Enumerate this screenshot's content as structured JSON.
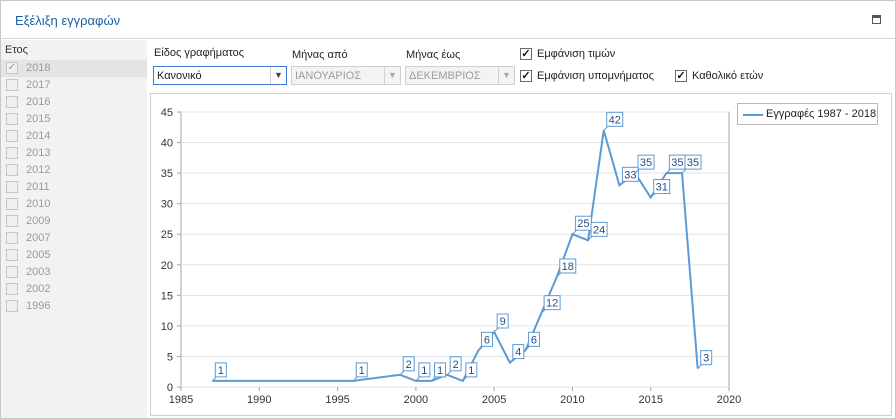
{
  "window": {
    "title": "Εξέλιξη εγγραφών"
  },
  "year_panel": {
    "header": "Ετος",
    "years": [
      {
        "label": "2018",
        "checked": true
      },
      {
        "label": "2017",
        "checked": false
      },
      {
        "label": "2016",
        "checked": false
      },
      {
        "label": "2015",
        "checked": false
      },
      {
        "label": "2014",
        "checked": false
      },
      {
        "label": "2013",
        "checked": false
      },
      {
        "label": "2012",
        "checked": false
      },
      {
        "label": "2011",
        "checked": false
      },
      {
        "label": "2010",
        "checked": false
      },
      {
        "label": "2009",
        "checked": false
      },
      {
        "label": "2007",
        "checked": false
      },
      {
        "label": "2005",
        "checked": false
      },
      {
        "label": "2003",
        "checked": false
      },
      {
        "label": "2002",
        "checked": false
      },
      {
        "label": "1996",
        "checked": false
      }
    ]
  },
  "controls": {
    "chart_type_label": "Είδος γραφήματος",
    "chart_type_value": "Κανονικό",
    "month_from_label": "Μήνας από",
    "month_from_value": "ΙΑΝΟΥΑΡΙΟΣ",
    "month_to_label": "Μήνας έως",
    "month_to_value": "ΔΕΚΕΜΒΡΙΟΣ",
    "show_values_label": "Εμφάνιση τιμών",
    "show_values_checked": true,
    "show_legend_label": "Εμφάνιση υπομνήματος",
    "show_legend_checked": true,
    "all_years_label": "Καθολικό ετών",
    "all_years_checked": true
  },
  "colors": {
    "accent": "#5b9bd5",
    "title": "#1f5fa8"
  },
  "chart_data": {
    "type": "line",
    "title": "",
    "xlabel": "",
    "ylabel": "",
    "xlim": [
      1985,
      2020
    ],
    "ylim": [
      0,
      45
    ],
    "xticks": [
      1985,
      1990,
      1995,
      2000,
      2005,
      2010,
      2015,
      2020
    ],
    "yticks": [
      0,
      5,
      10,
      15,
      20,
      25,
      30,
      35,
      40,
      45
    ],
    "grid": true,
    "legend_position": "top-right",
    "series": [
      {
        "name": "Εγγραφές 1987 - 2018",
        "points": [
          {
            "x": 1987,
            "y": 1
          },
          {
            "x": 1996,
            "y": 1
          },
          {
            "x": 1999,
            "y": 2
          },
          {
            "x": 2000,
            "y": 1
          },
          {
            "x": 2001,
            "y": 1
          },
          {
            "x": 2002,
            "y": 2
          },
          {
            "x": 2003,
            "y": 1
          },
          {
            "x": 2004,
            "y": 6
          },
          {
            "x": 2005,
            "y": 9
          },
          {
            "x": 2006,
            "y": 4
          },
          {
            "x": 2007,
            "y": 6
          },
          {
            "x": 2008,
            "y": 12
          },
          {
            "x": 2009,
            "y": 18
          },
          {
            "x": 2010,
            "y": 25
          },
          {
            "x": 2011,
            "y": 24
          },
          {
            "x": 2012,
            "y": 42
          },
          {
            "x": 2013,
            "y": 33
          },
          {
            "x": 2014,
            "y": 35
          },
          {
            "x": 2015,
            "y": 31
          },
          {
            "x": 2016,
            "y": 35
          },
          {
            "x": 2017,
            "y": 35
          },
          {
            "x": 2018,
            "y": 3
          }
        ],
        "data_labels": [
          {
            "x": 1987,
            "y": 1,
            "text": "1"
          },
          {
            "x": 1996,
            "y": 1,
            "text": "1"
          },
          {
            "x": 1999,
            "y": 2,
            "text": "2"
          },
          {
            "x": 2000,
            "y": 1,
            "text": "1"
          },
          {
            "x": 2001,
            "y": 1,
            "text": "1"
          },
          {
            "x": 2002,
            "y": 2,
            "text": "2"
          },
          {
            "x": 2003,
            "y": 1,
            "text": "1"
          },
          {
            "x": 2004,
            "y": 6,
            "text": "6"
          },
          {
            "x": 2005,
            "y": 9,
            "text": "9"
          },
          {
            "x": 2006,
            "y": 4,
            "text": "4"
          },
          {
            "x": 2007,
            "y": 6,
            "text": "6"
          },
          {
            "x": 2008,
            "y": 12,
            "text": "12"
          },
          {
            "x": 2009,
            "y": 18,
            "text": "18"
          },
          {
            "x": 2010,
            "y": 25,
            "text": "25"
          },
          {
            "x": 2011,
            "y": 24,
            "text": "24"
          },
          {
            "x": 2012,
            "y": 42,
            "text": "42"
          },
          {
            "x": 2013,
            "y": 33,
            "text": "33"
          },
          {
            "x": 2014,
            "y": 35,
            "text": "35"
          },
          {
            "x": 2015,
            "y": 31,
            "text": "31"
          },
          {
            "x": 2016,
            "y": 35,
            "text": "35"
          },
          {
            "x": 2017,
            "y": 35,
            "text": "35"
          },
          {
            "x": 2018,
            "y": 3,
            "text": "3"
          }
        ]
      }
    ]
  }
}
